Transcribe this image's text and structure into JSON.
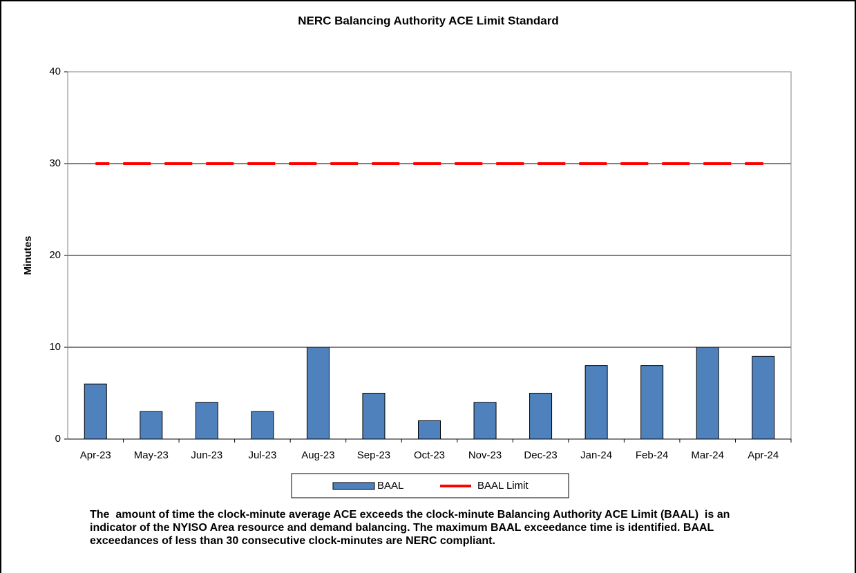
{
  "chart_data": {
    "type": "bar",
    "title": "NERC Balancing Authority ACE Limit Standard",
    "y_label": "Minutes",
    "categories": [
      "Apr-23",
      "May-23",
      "Jun-23",
      "Jul-23",
      "Aug-23",
      "Sep-23",
      "Oct-23",
      "Nov-23",
      "Dec-23",
      "Jan-24",
      "Feb-24",
      "Mar-24",
      "Apr-24"
    ],
    "series": [
      {
        "name": "BAAL",
        "type": "bar",
        "color": "#4f81bd",
        "values": [
          6,
          3,
          4,
          3,
          10,
          5,
          2,
          4,
          5,
          8,
          8,
          10,
          9
        ]
      },
      {
        "name": "BAAL Limit",
        "type": "line",
        "color": "#ff0000",
        "dashed": true,
        "values": [
          30,
          30,
          30,
          30,
          30,
          30,
          30,
          30,
          30,
          30,
          30,
          30,
          30
        ]
      }
    ],
    "ylim": [
      0,
      40
    ],
    "yticks": [
      0,
      10,
      20,
      30,
      40
    ],
    "grid": true,
    "legend": "bottom",
    "note": "The  amount of time the clock-minute average ACE exceeds the clock-minute Balancing Authority ACE Limit (BAAL)  is an indicator of the NYISO Area resource and demand balancing. The maximum BAAL exceedance time is identified. BAAL exceedances of less than 30 consecutive clock-minutes are NERC compliant."
  }
}
